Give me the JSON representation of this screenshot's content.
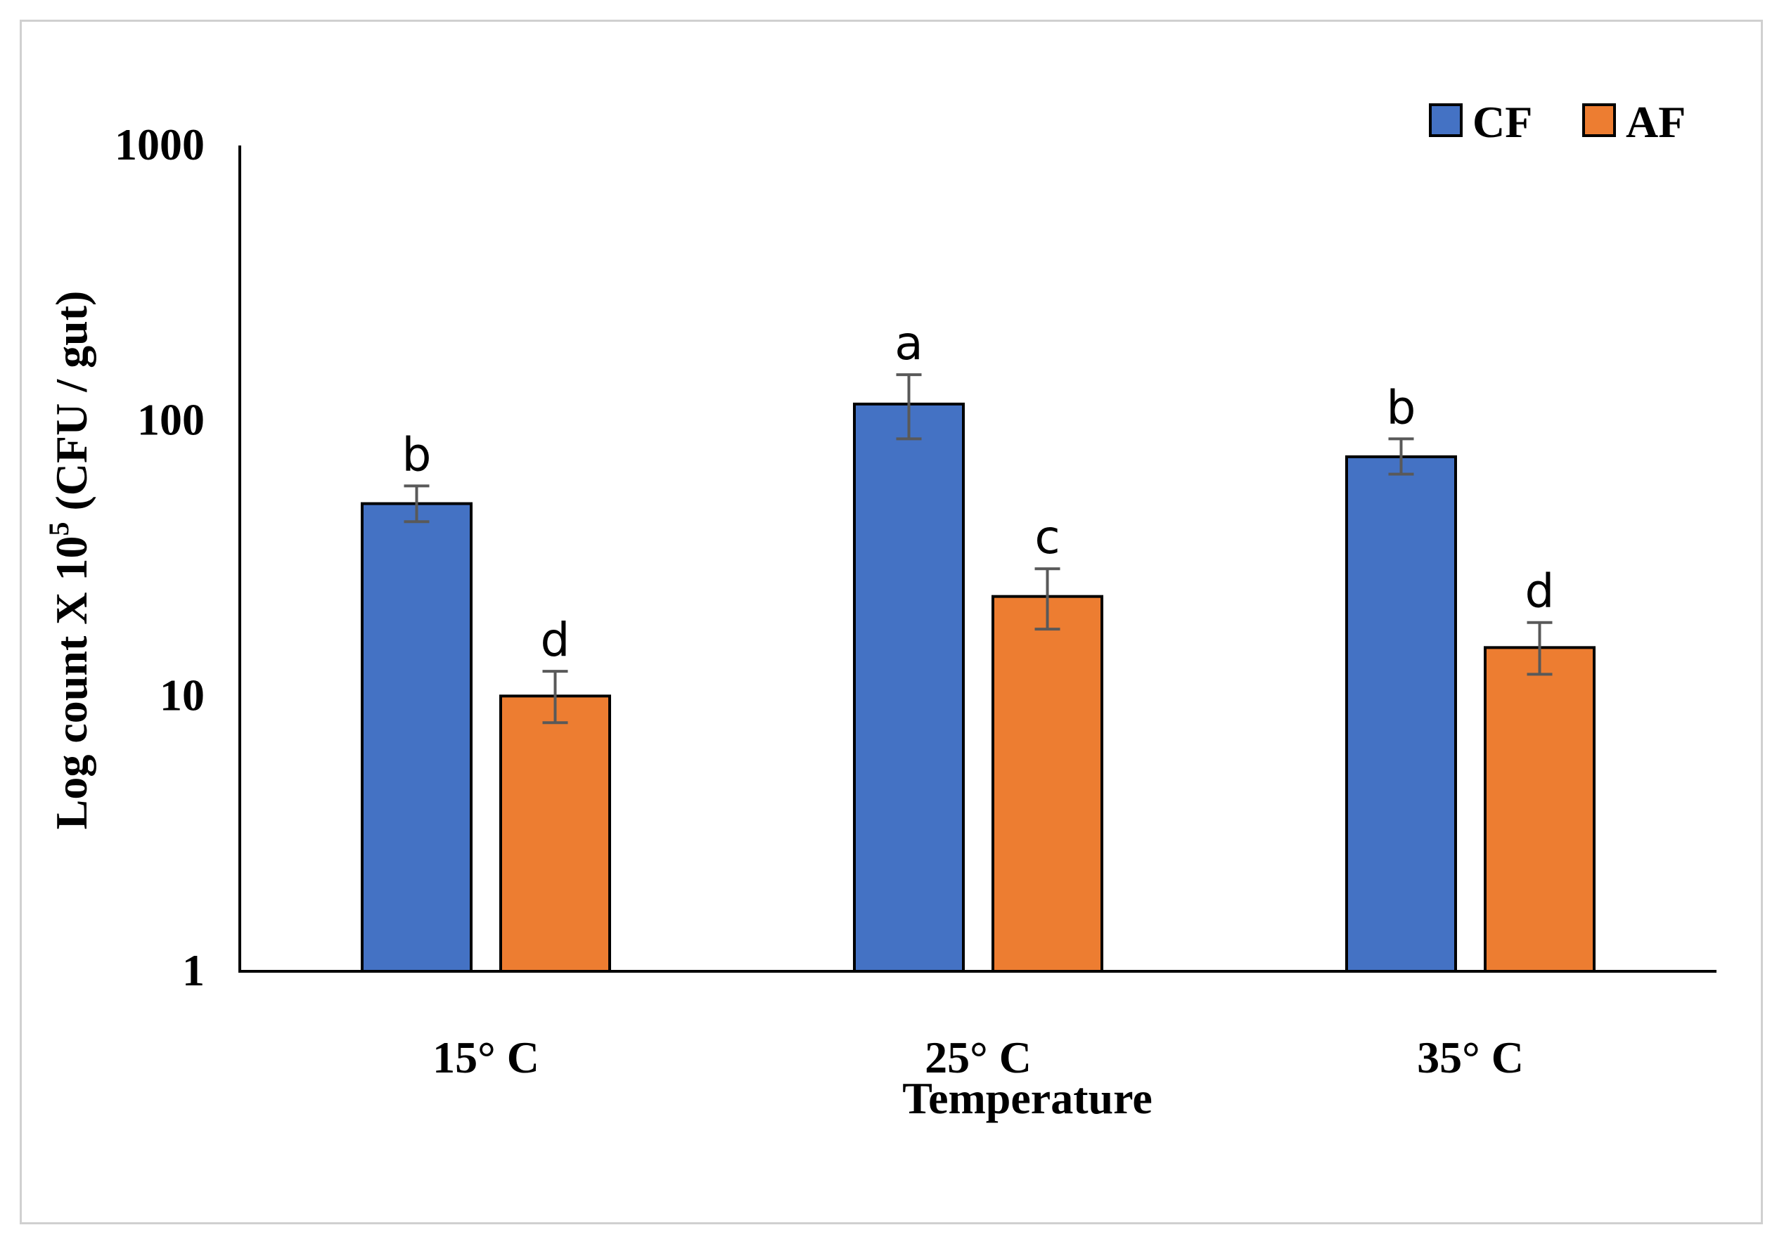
{
  "chart_data": {
    "type": "bar",
    "title": "",
    "xlabel": "Temperature",
    "ylabel": "Log count  X 10",
    "ylabel_sup": "5",
    "ylabel_unit": " (CFU / gut)",
    "yscale": "log",
    "ylim": [
      1,
      1000
    ],
    "yticks": [
      1,
      10,
      100,
      1000
    ],
    "ytick_labels": [
      "1",
      "10",
      "100",
      "1000"
    ],
    "categories": [
      "15° C",
      "25° C",
      "35° C"
    ],
    "legend_position": "top-right",
    "series": [
      {
        "name": "CF",
        "color": "#4472c4",
        "values": [
          50,
          115,
          74
        ],
        "error_low": [
          43,
          86,
          64
        ],
        "error_high": [
          58,
          147,
          86
        ],
        "labels": [
          "b",
          "a",
          "b"
        ]
      },
      {
        "name": "AF",
        "color": "#ed7d31",
        "values": [
          10,
          23,
          15
        ],
        "error_low": [
          8,
          17.5,
          12
        ],
        "error_high": [
          12.3,
          29,
          18.5
        ],
        "labels": [
          "d",
          "c",
          "d"
        ]
      }
    ]
  }
}
